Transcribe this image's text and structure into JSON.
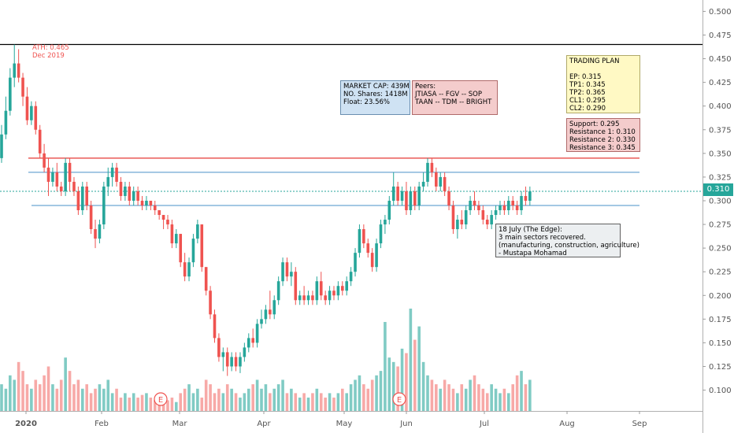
{
  "colors": {
    "up": "#26a69a",
    "down": "#ef5350",
    "vol_up": "#80cbc4",
    "vol_down": "#f7a9a7",
    "resistance": "#e53935",
    "support_line": "#4a90c8",
    "ath_line": "#000000"
  },
  "chart_data": {
    "type": "candlestick",
    "ylim": [
      0.078,
      0.512
    ],
    "y_ticks": [
      "0.500",
      "0.475",
      "0.450",
      "0.425",
      "0.400",
      "0.375",
      "0.350",
      "0.325",
      "0.300",
      "0.275",
      "0.250",
      "0.225",
      "0.200",
      "0.175",
      "0.150",
      "0.125",
      "0.100"
    ],
    "x_ticks": [
      "2020",
      "Feb",
      "Mar",
      "Apr",
      "May",
      "Jun",
      "Jul",
      "Aug",
      "Sep"
    ],
    "current_price": "0.310",
    "horizontal_lines": [
      {
        "label": "ATH",
        "value": 0.465,
        "color": "#000000"
      },
      {
        "label": "Resistance 3",
        "value": 0.345,
        "color": "#e53935"
      },
      {
        "label": "Resistance 2",
        "value": 0.33,
        "color": "#4a90c8"
      },
      {
        "label": "Resistance 1",
        "value": 0.31,
        "color": "#26a69a"
      },
      {
        "label": "Support",
        "value": 0.295,
        "color": "#4a90c8"
      }
    ],
    "candles": [
      [
        0.345,
        0.38,
        0.34,
        0.37
      ],
      [
        0.37,
        0.41,
        0.365,
        0.395
      ],
      [
        0.395,
        0.44,
        0.39,
        0.43
      ],
      [
        0.43,
        0.465,
        0.42,
        0.445
      ],
      [
        0.445,
        0.46,
        0.425,
        0.43
      ],
      [
        0.43,
        0.435,
        0.4,
        0.41
      ],
      [
        0.41,
        0.42,
        0.38,
        0.385
      ],
      [
        0.385,
        0.405,
        0.38,
        0.4
      ],
      [
        0.4,
        0.405,
        0.37,
        0.375
      ],
      [
        0.375,
        0.38,
        0.345,
        0.35
      ],
      [
        0.35,
        0.36,
        0.33,
        0.335
      ],
      [
        0.335,
        0.345,
        0.305,
        0.32
      ],
      [
        0.32,
        0.335,
        0.315,
        0.33
      ],
      [
        0.33,
        0.34,
        0.31,
        0.315
      ],
      [
        0.315,
        0.32,
        0.305,
        0.31
      ],
      [
        0.31,
        0.345,
        0.305,
        0.34
      ],
      [
        0.34,
        0.345,
        0.31,
        0.32
      ],
      [
        0.32,
        0.325,
        0.305,
        0.31
      ],
      [
        0.31,
        0.315,
        0.285,
        0.29
      ],
      [
        0.29,
        0.32,
        0.285,
        0.315
      ],
      [
        0.315,
        0.32,
        0.29,
        0.295
      ],
      [
        0.295,
        0.3,
        0.265,
        0.27
      ],
      [
        0.27,
        0.28,
        0.25,
        0.26
      ],
      [
        0.26,
        0.28,
        0.255,
        0.275
      ],
      [
        0.275,
        0.32,
        0.27,
        0.315
      ],
      [
        0.315,
        0.335,
        0.305,
        0.325
      ],
      [
        0.325,
        0.34,
        0.315,
        0.335
      ],
      [
        0.335,
        0.34,
        0.315,
        0.32
      ],
      [
        0.32,
        0.325,
        0.3,
        0.305
      ],
      [
        0.305,
        0.32,
        0.3,
        0.315
      ],
      [
        0.315,
        0.32,
        0.295,
        0.3
      ],
      [
        0.3,
        0.315,
        0.295,
        0.31
      ],
      [
        0.31,
        0.315,
        0.295,
        0.3
      ],
      [
        0.3,
        0.305,
        0.29,
        0.295
      ],
      [
        0.295,
        0.305,
        0.29,
        0.3
      ],
      [
        0.3,
        0.3,
        0.29,
        0.295
      ],
      [
        0.295,
        0.3,
        0.285,
        0.29
      ],
      [
        0.29,
        0.29,
        0.28,
        0.285
      ],
      [
        0.285,
        0.285,
        0.27,
        0.28
      ],
      [
        0.28,
        0.285,
        0.27,
        0.275
      ],
      [
        0.275,
        0.28,
        0.25,
        0.255
      ],
      [
        0.255,
        0.27,
        0.25,
        0.265
      ],
      [
        0.265,
        0.265,
        0.23,
        0.235
      ],
      [
        0.235,
        0.245,
        0.215,
        0.22
      ],
      [
        0.22,
        0.24,
        0.215,
        0.235
      ],
      [
        0.235,
        0.265,
        0.23,
        0.26
      ],
      [
        0.26,
        0.28,
        0.255,
        0.275
      ],
      [
        0.275,
        0.275,
        0.225,
        0.23
      ],
      [
        0.23,
        0.23,
        0.2,
        0.205
      ],
      [
        0.205,
        0.21,
        0.175,
        0.18
      ],
      [
        0.18,
        0.185,
        0.15,
        0.155
      ],
      [
        0.155,
        0.16,
        0.13,
        0.135
      ],
      [
        0.135,
        0.145,
        0.12,
        0.14
      ],
      [
        0.14,
        0.145,
        0.115,
        0.125
      ],
      [
        0.125,
        0.14,
        0.12,
        0.135
      ],
      [
        0.135,
        0.14,
        0.12,
        0.125
      ],
      [
        0.125,
        0.14,
        0.118,
        0.135
      ],
      [
        0.135,
        0.15,
        0.13,
        0.145
      ],
      [
        0.145,
        0.16,
        0.14,
        0.155
      ],
      [
        0.155,
        0.165,
        0.145,
        0.15
      ],
      [
        0.15,
        0.175,
        0.145,
        0.17
      ],
      [
        0.17,
        0.185,
        0.165,
        0.175
      ],
      [
        0.175,
        0.19,
        0.17,
        0.185
      ],
      [
        0.185,
        0.205,
        0.175,
        0.18
      ],
      [
        0.18,
        0.2,
        0.175,
        0.195
      ],
      [
        0.195,
        0.22,
        0.19,
        0.215
      ],
      [
        0.215,
        0.24,
        0.21,
        0.235
      ],
      [
        0.235,
        0.24,
        0.215,
        0.22
      ],
      [
        0.22,
        0.235,
        0.21,
        0.225
      ],
      [
        0.225,
        0.23,
        0.19,
        0.195
      ],
      [
        0.195,
        0.205,
        0.19,
        0.2
      ],
      [
        0.2,
        0.21,
        0.19,
        0.195
      ],
      [
        0.195,
        0.205,
        0.19,
        0.2
      ],
      [
        0.2,
        0.205,
        0.19,
        0.195
      ],
      [
        0.195,
        0.22,
        0.19,
        0.215
      ],
      [
        0.215,
        0.225,
        0.195,
        0.2
      ],
      [
        0.2,
        0.205,
        0.19,
        0.195
      ],
      [
        0.195,
        0.21,
        0.19,
        0.205
      ],
      [
        0.205,
        0.21,
        0.195,
        0.2
      ],
      [
        0.2,
        0.215,
        0.195,
        0.21
      ],
      [
        0.21,
        0.215,
        0.2,
        0.205
      ],
      [
        0.205,
        0.22,
        0.2,
        0.215
      ],
      [
        0.215,
        0.23,
        0.21,
        0.225
      ],
      [
        0.225,
        0.25,
        0.22,
        0.245
      ],
      [
        0.245,
        0.275,
        0.24,
        0.27
      ],
      [
        0.27,
        0.275,
        0.25,
        0.255
      ],
      [
        0.255,
        0.26,
        0.24,
        0.245
      ],
      [
        0.245,
        0.25,
        0.225,
        0.23
      ],
      [
        0.23,
        0.26,
        0.225,
        0.255
      ],
      [
        0.255,
        0.28,
        0.25,
        0.275
      ],
      [
        0.275,
        0.285,
        0.265,
        0.28
      ],
      [
        0.28,
        0.305,
        0.275,
        0.3
      ],
      [
        0.3,
        0.33,
        0.295,
        0.315
      ],
      [
        0.315,
        0.32,
        0.295,
        0.3
      ],
      [
        0.3,
        0.315,
        0.295,
        0.31
      ],
      [
        0.31,
        0.32,
        0.285,
        0.29
      ],
      [
        0.29,
        0.315,
        0.285,
        0.31
      ],
      [
        0.31,
        0.315,
        0.29,
        0.295
      ],
      [
        0.295,
        0.32,
        0.29,
        0.315
      ],
      [
        0.315,
        0.33,
        0.31,
        0.32
      ],
      [
        0.32,
        0.345,
        0.315,
        0.34
      ],
      [
        0.34,
        0.345,
        0.325,
        0.33
      ],
      [
        0.33,
        0.335,
        0.31,
        0.315
      ],
      [
        0.315,
        0.33,
        0.31,
        0.325
      ],
      [
        0.325,
        0.33,
        0.305,
        0.31
      ],
      [
        0.31,
        0.315,
        0.29,
        0.295
      ],
      [
        0.295,
        0.3,
        0.265,
        0.27
      ],
      [
        0.27,
        0.285,
        0.26,
        0.28
      ],
      [
        0.28,
        0.29,
        0.27,
        0.275
      ],
      [
        0.275,
        0.295,
        0.27,
        0.29
      ],
      [
        0.29,
        0.305,
        0.285,
        0.3
      ],
      [
        0.3,
        0.31,
        0.29,
        0.295
      ],
      [
        0.295,
        0.3,
        0.285,
        0.29
      ],
      [
        0.29,
        0.295,
        0.275,
        0.28
      ],
      [
        0.28,
        0.285,
        0.27,
        0.275
      ],
      [
        0.275,
        0.29,
        0.27,
        0.285
      ],
      [
        0.285,
        0.295,
        0.28,
        0.29
      ],
      [
        0.29,
        0.3,
        0.285,
        0.295
      ],
      [
        0.295,
        0.3,
        0.285,
        0.29
      ],
      [
        0.29,
        0.305,
        0.285,
        0.3
      ],
      [
        0.3,
        0.305,
        0.29,
        0.295
      ],
      [
        0.295,
        0.3,
        0.285,
        0.29
      ],
      [
        0.29,
        0.31,
        0.285,
        0.305
      ],
      [
        0.305,
        0.315,
        0.295,
        0.3
      ],
      [
        0.3,
        0.315,
        0.295,
        0.31
      ]
    ],
    "volume": [
      0.3,
      0.25,
      0.4,
      0.35,
      0.55,
      0.45,
      0.3,
      0.25,
      0.35,
      0.3,
      0.4,
      0.5,
      0.3,
      0.25,
      0.35,
      0.6,
      0.45,
      0.3,
      0.35,
      0.25,
      0.3,
      0.2,
      0.25,
      0.3,
      0.25,
      0.35,
      0.2,
      0.25,
      0.15,
      0.2,
      0.15,
      0.2,
      0.15,
      0.18,
      0.2,
      0.15,
      0.12,
      0.15,
      0.1,
      0.12,
      0.15,
      0.1,
      0.2,
      0.25,
      0.3,
      0.2,
      0.25,
      0.15,
      0.35,
      0.3,
      0.2,
      0.25,
      0.2,
      0.3,
      0.25,
      0.2,
      0.15,
      0.2,
      0.25,
      0.3,
      0.35,
      0.25,
      0.3,
      0.2,
      0.25,
      0.3,
      0.35,
      0.2,
      0.25,
      0.2,
      0.15,
      0.2,
      0.15,
      0.2,
      0.25,
      0.2,
      0.15,
      0.2,
      0.15,
      0.2,
      0.25,
      0.2,
      0.3,
      0.35,
      0.4,
      0.3,
      0.25,
      0.35,
      0.4,
      0.45,
      1.0,
      0.6,
      0.55,
      0.5,
      0.7,
      0.65,
      1.15,
      0.8,
      0.95,
      0.55,
      0.4,
      0.35,
      0.3,
      0.25,
      0.35,
      0.3,
      0.25,
      0.2,
      0.3,
      0.25,
      0.35,
      0.4,
      0.3,
      0.25,
      0.2,
      0.3,
      0.25,
      0.2,
      0.25,
      0.2,
      0.3,
      0.4,
      0.45,
      0.3,
      0.35
    ]
  },
  "annotations": {
    "ath_line1": "ATH: 0.465",
    "ath_line2": "Dec 2019",
    "market": [
      "MARKET CAP: 439M",
      "NO. Shares: 1418M",
      "Float: 23.56%"
    ],
    "peers": [
      "Peers:",
      "JTIASA -- FGV -- SOP",
      "TAAN -- TDM -- BRIGHT"
    ],
    "plan": [
      "TRADING PLAN",
      "",
      "EP: 0.315",
      "TP1: 0.345",
      "TP2: 0.365",
      "CL1: 0.295",
      "CL2: 0.290"
    ],
    "levels": [
      "Support: 0.295",
      "Resistance 1: 0.310",
      "Resistance 2: 0.330",
      "Resistance 3: 0.345"
    ],
    "news": [
      "18 July (The Edge):",
      "3 main sectors recovered.",
      "(manufacturing, construction, agriculture)",
      "- Mustapa Mohamad"
    ],
    "earnings_marker": "E"
  }
}
